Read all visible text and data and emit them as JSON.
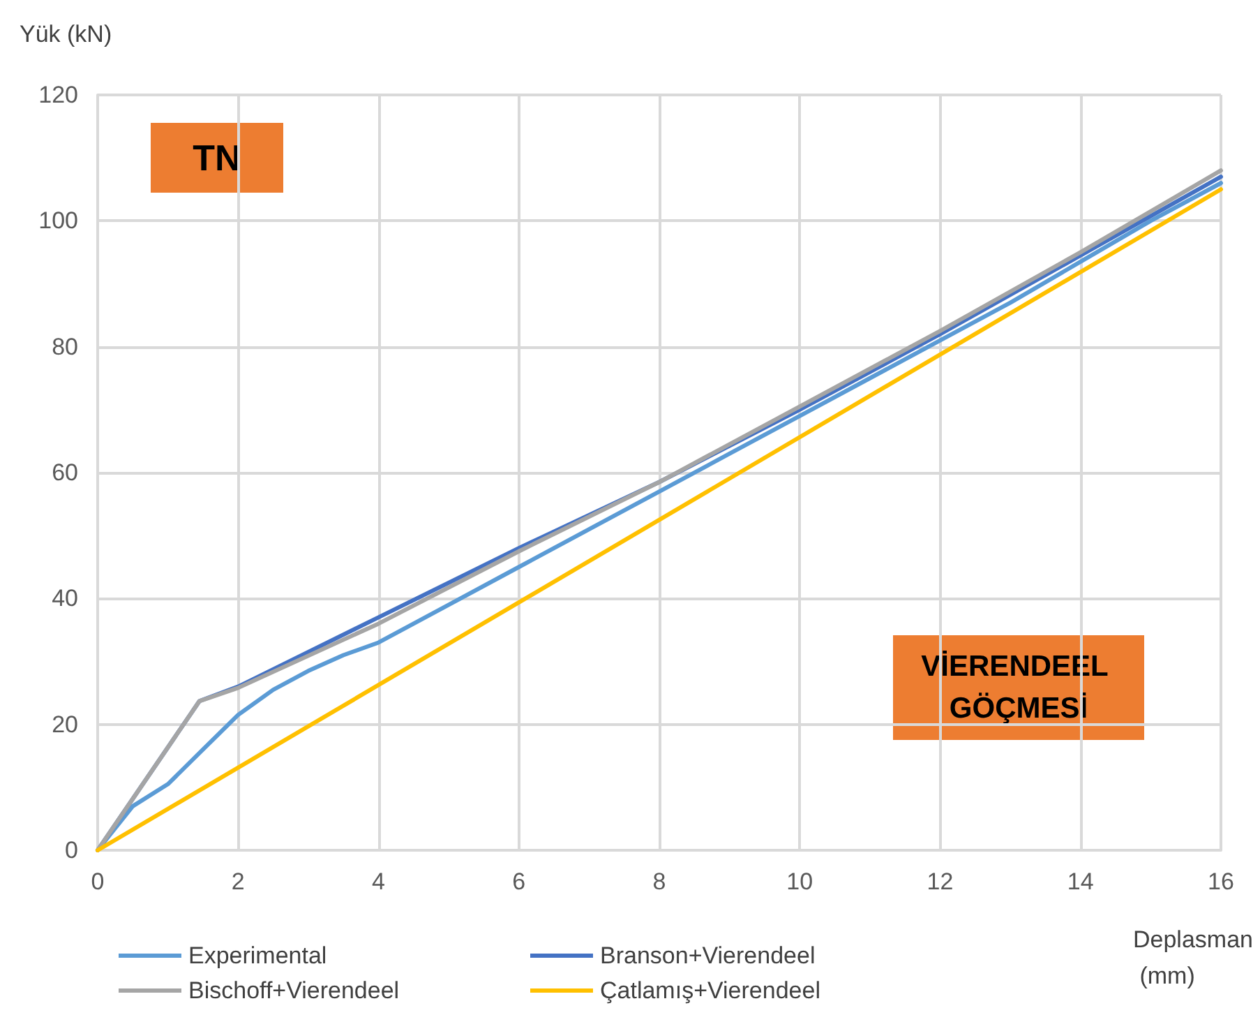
{
  "chart_data": {
    "type": "line",
    "xlabel": "Deplasman (mm)",
    "ylabel": "Yük (kN)",
    "annotations": [
      "TN",
      "VİERENDEEL GÖÇMESİ"
    ],
    "xlim": [
      0,
      16
    ],
    "xticks": [
      0,
      2,
      4,
      6,
      8,
      10,
      12,
      14,
      16
    ],
    "ylim": [
      0,
      120
    ],
    "yticks": [
      0,
      20,
      40,
      60,
      80,
      100,
      120
    ],
    "grid": true,
    "legend": "bottom",
    "marker": "none",
    "line_style": "solid",
    "series": [
      {
        "name": "Experimental",
        "color": "#5b9bd5",
        "x": [
          0,
          0.5,
          1,
          1.5,
          2,
          2.5,
          3,
          3.5,
          4,
          5,
          6,
          7,
          8,
          9,
          10,
          11,
          12,
          13,
          14,
          15,
          16
        ],
        "values": [
          0,
          7,
          10.5,
          16,
          21.5,
          25.5,
          28.5,
          31,
          33,
          39,
          45,
          51,
          57,
          63,
          69,
          75,
          81,
          87,
          93.5,
          100,
          106
        ]
      },
      {
        "name": "Branson+Vierendeel",
        "color": "#4472c4",
        "x": [
          0,
          1.45,
          2,
          4,
          6,
          8,
          10,
          12,
          14,
          16
        ],
        "values": [
          0,
          23.7,
          26,
          37,
          48,
          58.5,
          70,
          82,
          94.5,
          107
        ]
      },
      {
        "name": "Bischoff+Vierendeel",
        "color": "#a5a5a5",
        "x": [
          0,
          1.45,
          2,
          4,
          6,
          8,
          10,
          12,
          14,
          16
        ],
        "values": [
          0,
          23.7,
          25.8,
          36,
          47.5,
          58.5,
          70.5,
          82.5,
          95,
          108
        ]
      },
      {
        "name": "Çatlamış+Vierendeel",
        "color": "#ffc000",
        "x": [
          0,
          16
        ],
        "values": [
          0,
          105
        ]
      }
    ]
  }
}
